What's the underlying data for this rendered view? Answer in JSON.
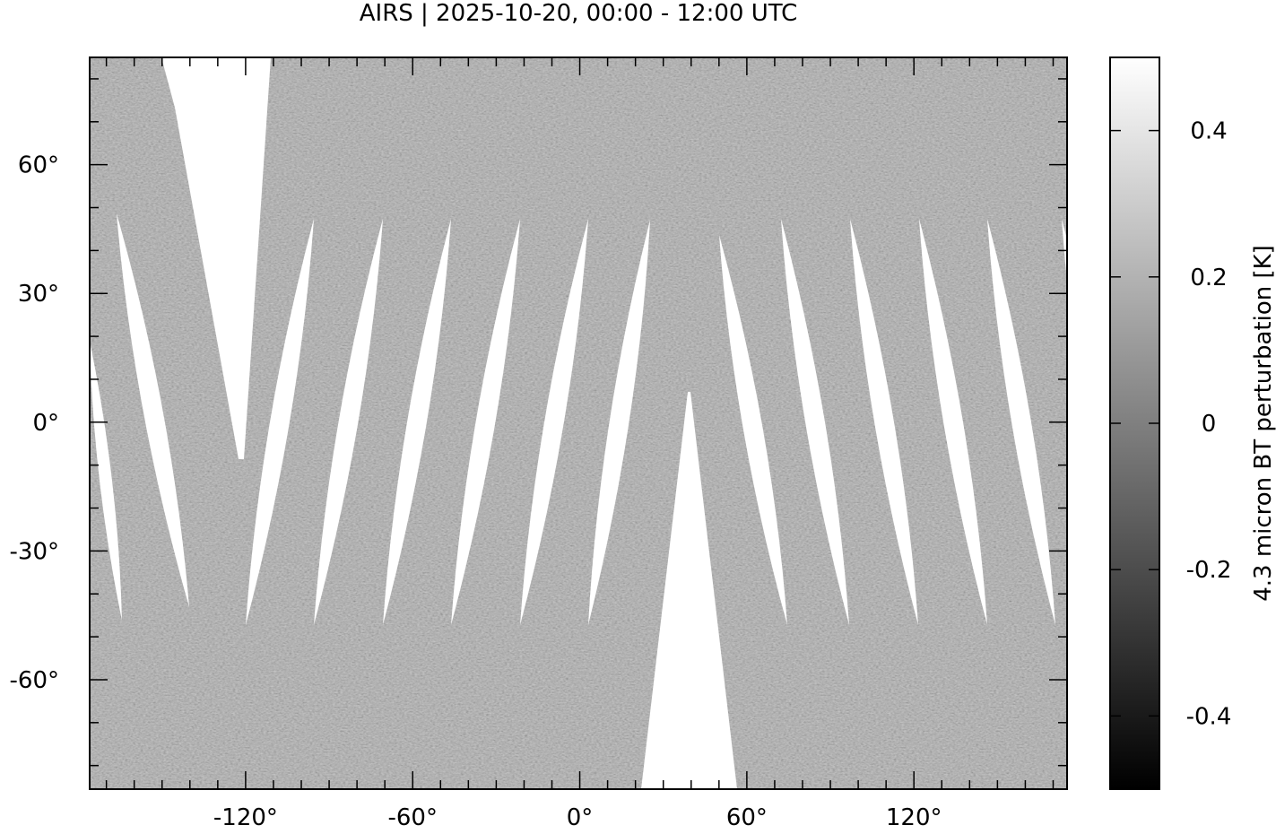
{
  "title": "AIRS | 2025-10-20, 00:00 - 12:00 UTC",
  "map": {
    "projection": "equirectangular",
    "lon_range": [
      -176,
      175
    ],
    "lat_range": [
      -85.5,
      85
    ],
    "lon_ticks": [
      -120,
      -60,
      0,
      60,
      120
    ],
    "lon_tick_labels": [
      "-120°",
      "-60°",
      "0°",
      "60°",
      "120°"
    ],
    "lat_ticks": [
      60,
      30,
      0,
      -30,
      -60
    ],
    "lat_tick_labels": [
      "60°",
      "30°",
      "0°",
      "-30°",
      "-60°"
    ],
    "minor_tick_step_deg": 10,
    "missing_data_color": "#ffffff",
    "field_color": "#9e9e9e"
  },
  "colorbar": {
    "label": "4.3 micron BT perturbation [K]",
    "range": [
      -0.5,
      0.5
    ],
    "ticks": [
      0.4,
      0.2,
      0,
      -0.2,
      -0.4
    ],
    "tick_labels": [
      "0.4",
      "0.2",
      "0",
      "-0.2",
      "-0.4"
    ],
    "colormap": "grayscale",
    "low_color": "#000000",
    "high_color": "#ffffff"
  }
}
